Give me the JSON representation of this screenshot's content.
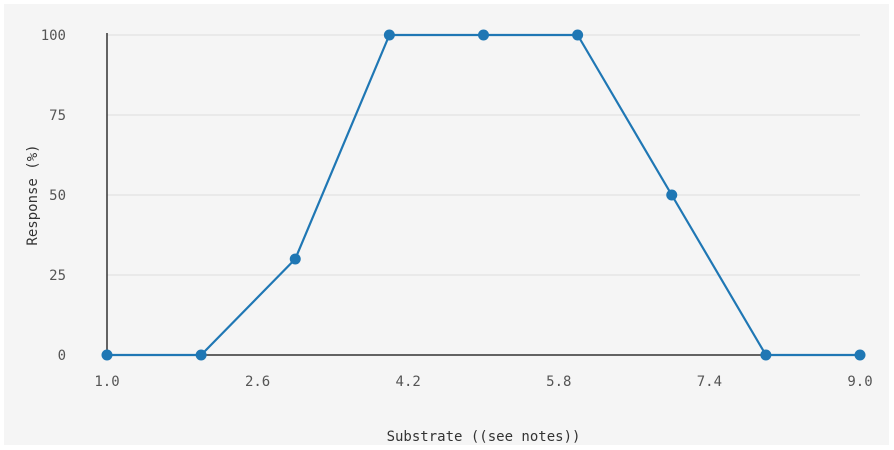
{
  "chart_data": {
    "type": "line",
    "title": "",
    "xlabel": "Substrate ((see notes))",
    "ylabel": "Response (%)",
    "xlim": [
      1.0,
      9.0
    ],
    "ylim": [
      0,
      100
    ],
    "x_ticks": [
      "1.0",
      "2.6",
      "4.2",
      "5.8",
      "7.4",
      "9.0"
    ],
    "y_ticks": [
      "0",
      "25",
      "50",
      "75",
      "100"
    ],
    "grid": "horizontal",
    "legend": "none",
    "series": [
      {
        "color": "#1f77b4",
        "x": [
          1.0,
          2.0,
          3.0,
          4.0,
          5.0,
          6.0,
          7.0,
          8.0,
          9.0
        ],
        "y": [
          0,
          0,
          30,
          100,
          100,
          100,
          50,
          0,
          0
        ]
      }
    ]
  }
}
